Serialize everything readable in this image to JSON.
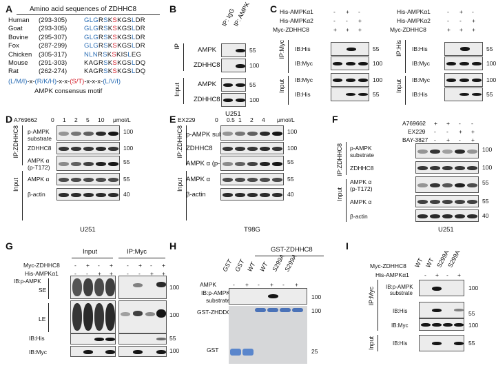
{
  "panels": {
    "A": "A",
    "B": "B",
    "C": "C",
    "D": "D",
    "E": "E",
    "F": "F",
    "G": "G",
    "H": "H",
    "I": "I"
  },
  "A": {
    "title": "Amino acid sequences of ZDHHC8",
    "rows": [
      {
        "species": "Human",
        "range": "(293-305)",
        "seq": [
          [
            "GLG",
            "b"
          ],
          [
            "R",
            "k"
          ],
          [
            "S",
            "b"
          ],
          [
            "K",
            "k"
          ],
          [
            "S",
            "r"
          ],
          [
            "KGS",
            "k"
          ],
          [
            "L",
            "b"
          ],
          [
            "DR",
            "k"
          ]
        ]
      },
      {
        "species": "Goat",
        "range": "(293-305)",
        "seq": [
          [
            "GLG",
            "b"
          ],
          [
            "R",
            "k"
          ],
          [
            "S",
            "b"
          ],
          [
            "K",
            "k"
          ],
          [
            "S",
            "r"
          ],
          [
            "KGS",
            "k"
          ],
          [
            "L",
            "b"
          ],
          [
            "DR",
            "k"
          ]
        ]
      },
      {
        "species": "Bovine",
        "range": "(295-307)",
        "seq": [
          [
            "GLG",
            "b"
          ],
          [
            "R",
            "k"
          ],
          [
            "S",
            "b"
          ],
          [
            "K",
            "k"
          ],
          [
            "S",
            "r"
          ],
          [
            "KGS",
            "k"
          ],
          [
            "L",
            "b"
          ],
          [
            "DR",
            "k"
          ]
        ]
      },
      {
        "species": "Fox",
        "range": "(287-299)",
        "seq": [
          [
            "GLG",
            "b"
          ],
          [
            "R",
            "k"
          ],
          [
            "S",
            "b"
          ],
          [
            "K",
            "k"
          ],
          [
            "S",
            "r"
          ],
          [
            "KGS",
            "k"
          ],
          [
            "L",
            "b"
          ],
          [
            "DR",
            "k"
          ]
        ]
      },
      {
        "species": "Chicken",
        "range": "(305-317)",
        "seq": [
          [
            "NLN",
            "b"
          ],
          [
            "R",
            "k"
          ],
          [
            "S",
            "b"
          ],
          [
            "K",
            "k"
          ],
          [
            "S",
            "r"
          ],
          [
            "K",
            "k"
          ],
          [
            "IS",
            "k"
          ],
          [
            "L",
            "b"
          ],
          [
            "EG",
            "k"
          ]
        ]
      },
      {
        "species": "Mouse",
        "range": "(291-303)",
        "seq": [
          [
            "KAG",
            "k"
          ],
          [
            "R",
            "k"
          ],
          [
            "S",
            "b"
          ],
          [
            "K",
            "k"
          ],
          [
            "S",
            "r"
          ],
          [
            "KGS",
            "k"
          ],
          [
            "L",
            "b"
          ],
          [
            "DQ",
            "k"
          ]
        ]
      },
      {
        "species": "Rat",
        "range": "(262-274)",
        "seq": [
          [
            "KAG",
            "k"
          ],
          [
            "R",
            "k"
          ],
          [
            "S",
            "b"
          ],
          [
            "K",
            "k"
          ],
          [
            "S",
            "r"
          ],
          [
            "KGS",
            "k"
          ],
          [
            "L",
            "b"
          ],
          [
            "DQ",
            "k"
          ]
        ]
      }
    ],
    "consensus": [
      [
        "(L/M/I)",
        "b"
      ],
      [
        "-x-",
        "k"
      ],
      [
        "(R/K/H)",
        "b"
      ],
      [
        "-x-x-",
        "k"
      ],
      [
        "(S/T)",
        "r"
      ],
      [
        "-x-x-x-",
        "k"
      ],
      [
        "(L/V/I)",
        "b"
      ]
    ],
    "motif_label": "AMPK consensus motif"
  },
  "B": {
    "lanes": [
      "IP: IgG",
      "IP: AMPK"
    ],
    "ip": "IP",
    "input": "Input",
    "rows": [
      "AMPK",
      "ZDHHC8",
      "AMPK",
      "ZDHHC8"
    ],
    "mw": [
      "55",
      "100",
      "55",
      "100"
    ],
    "cell": "U251"
  },
  "C": {
    "left": {
      "conds": [
        {
          "label": "His-AMPKα1",
          "v": [
            "-",
            "+",
            "-"
          ]
        },
        {
          "label": "His-AMPKα2",
          "v": [
            "-",
            "-",
            "+"
          ]
        },
        {
          "label": "Myc-ZDHHC8",
          "v": [
            "+",
            "+",
            "+"
          ]
        }
      ],
      "ip": "IP:Myc",
      "input": "Input",
      "rows": [
        "IB:His",
        "IB:Myc",
        "IB:Myc",
        "IB:His"
      ],
      "mw": [
        "55",
        "100",
        "100",
        "55"
      ]
    },
    "right": {
      "conds": [
        {
          "label": "His-AMPKα1",
          "v": [
            "-",
            "+",
            "-"
          ]
        },
        {
          "label": "His-AMPKα2",
          "v": [
            "-",
            "-",
            "+"
          ]
        },
        {
          "label": "Myc-ZDHHC8",
          "v": [
            "+",
            "+",
            "+"
          ]
        }
      ],
      "ip": "IP:His",
      "input": "Input",
      "rows": [
        "IB:His",
        "IB:Myc",
        "IB:Myc",
        "IB:His"
      ],
      "mw": [
        "55",
        "100",
        "100",
        "55"
      ]
    }
  },
  "D": {
    "treat": "A769662",
    "doses": [
      "0",
      "1",
      "2",
      "5",
      "10"
    ],
    "unit": "μmol/L",
    "ip": "IP:ZDHHC8",
    "input": "Input",
    "rows": [
      "p-AMPK substrate",
      "ZDHHC8",
      "AMPK α (p-T172)",
      "AMPK α",
      "β-actin"
    ],
    "row_lines": [
      [
        "p-AMPK",
        "substrate"
      ],
      [
        "ZDHHC8"
      ],
      [
        "AMPK α",
        "(p-T172)"
      ],
      [
        "AMPK α"
      ],
      [
        "β-actin"
      ]
    ],
    "mw": [
      "100",
      "100",
      "55",
      "55",
      "40"
    ],
    "cell": "U251"
  },
  "E": {
    "treat": "EX229",
    "doses": [
      "0",
      "0.5",
      "1",
      "2",
      "4"
    ],
    "unit": "μmol/L",
    "ip": "IP:ZDHHC8",
    "input": "Input",
    "rows": [
      "p-AMPK substrate",
      "ZDHHC8",
      "AMPK α (p-T172)",
      "AMPK α",
      "β-actin"
    ],
    "mw": [
      "100",
      "100",
      "55",
      "55",
      "40"
    ],
    "cell": "T98G"
  },
  "F": {
    "conds": [
      {
        "label": "A769662",
        "v": [
          "-",
          "+",
          "+",
          "-",
          "-"
        ]
      },
      {
        "label": "EX229",
        "v": [
          "-",
          "-",
          "-",
          "+",
          "+"
        ]
      },
      {
        "label": "BAY-3827",
        "v": [
          "-",
          "-",
          "+",
          "-",
          "+"
        ]
      }
    ],
    "ip": "IP:ZDHHC8",
    "input": "Input",
    "row_lines": [
      [
        "p-AMPK",
        "substrate"
      ],
      [
        "ZDHHC8"
      ],
      [
        "AMPK α",
        "(p-T172)"
      ],
      [
        "AMPK α"
      ],
      [
        "β-actin"
      ]
    ],
    "mw": [
      "100",
      "100",
      "55",
      "55",
      "40"
    ],
    "cell": "U251"
  },
  "G": {
    "groups": [
      "Input",
      "IP:Myc"
    ],
    "conds": [
      {
        "label": "Myc-ZDHHC8",
        "v": [
          "-",
          "+",
          "-",
          "+",
          "-",
          "+",
          "-",
          "+"
        ]
      },
      {
        "label": "His-AMPKα1",
        "v": [
          "-",
          "-",
          "+",
          "+",
          "-",
          "-",
          "+",
          "+"
        ]
      }
    ],
    "sublabels": [
      "SE",
      "LE"
    ],
    "group_label": "IB:p-AMPK substrate",
    "rows": [
      "IB:His",
      "IB:Myc"
    ],
    "mw": [
      "100",
      "100",
      "55",
      "100"
    ]
  },
  "H": {
    "header": "GST-ZDHHC8",
    "lanes": [
      "GST",
      "GST",
      "WT",
      "WT",
      "S299A",
      "S299A"
    ],
    "ampk": {
      "label": "AMPK",
      "v": [
        "-",
        "+",
        "-",
        "+",
        "-",
        "+"
      ]
    },
    "rows": [
      "IB:p-AMPK substrate",
      "GST-ZHDDC8",
      "GST"
    ],
    "row_lines": [
      [
        "IB:p-AMPK",
        "substrate"
      ],
      [
        "GST-ZHDDC8"
      ]
    ],
    "gst": "GST",
    "mw": [
      "100",
      "100",
      "25"
    ]
  },
  "I": {
    "lanes": [
      "WT",
      "WT",
      "S299A",
      "S299A"
    ],
    "conds": [
      {
        "label": "Myc-ZDHHC8",
        "v": []
      },
      {
        "label": "His-AMPKα1",
        "v": [
          "-",
          "+",
          "-",
          "+"
        ]
      }
    ],
    "ip": "IP:Myc",
    "input": "Input",
    "row_lines": [
      [
        "IB:p-AMPK",
        "substrate"
      ],
      [
        "IB:His"
      ],
      [
        "IB:Myc"
      ],
      [
        "IB:His"
      ]
    ],
    "mw": [
      "100",
      "55",
      "100",
      "55"
    ]
  }
}
